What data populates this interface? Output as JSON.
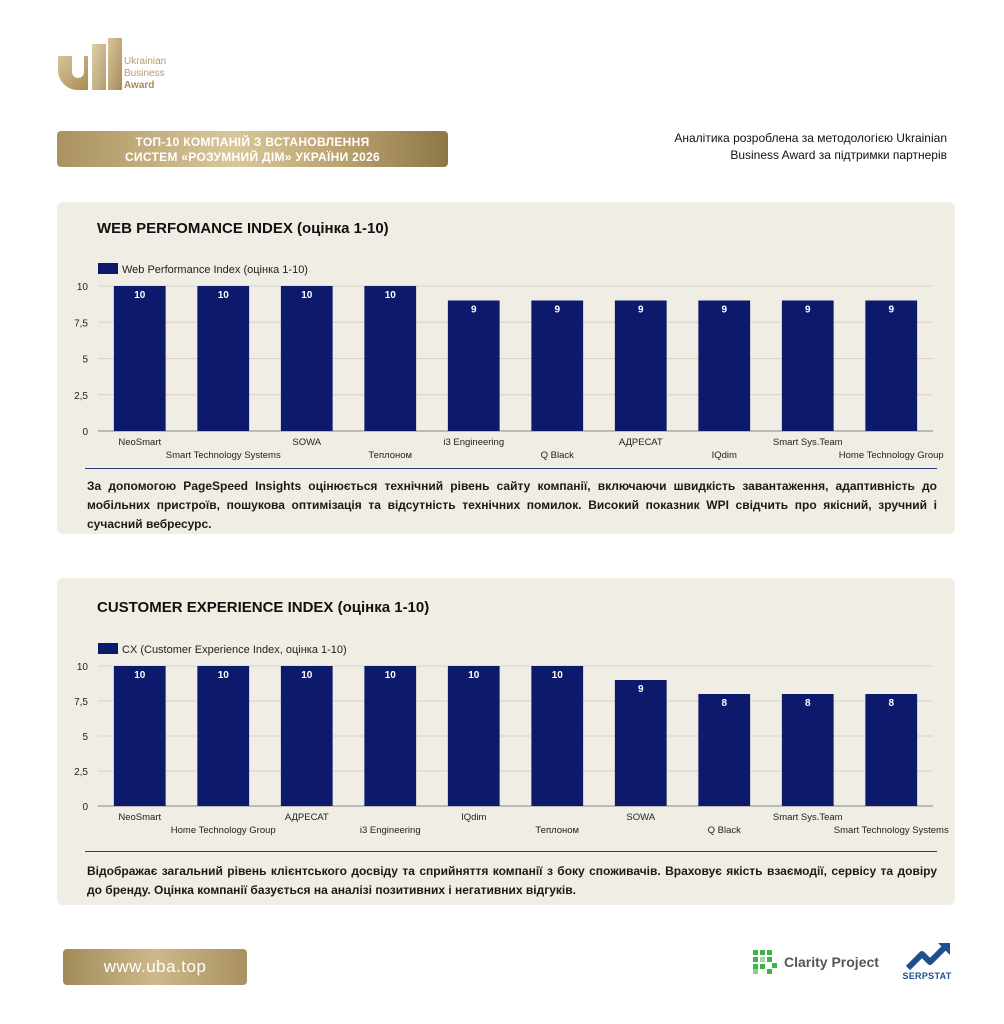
{
  "brand": {
    "logo_lines": [
      "Ukrainian",
      "Business",
      "Award"
    ],
    "banner_lines": [
      "ТОП-10 КОМПАНІЙ З ВСТАНОВЛЕННЯ",
      "СИСТЕМ «РОЗУМНИЙ ДІМ» УКРАЇНИ 2026"
    ],
    "note_lines": [
      "Аналітика розроблена за методологією Ukrainian",
      "Business Award за підтримки партнерів"
    ],
    "accent_color": "#b89a6a"
  },
  "chart_data": [
    {
      "type": "bar",
      "title": "WEB PERFOMANCE INDEX (оцінка 1-10)",
      "legend": "Web Performance Index (оцінка 1-10)",
      "categories": [
        "NeoSmart",
        "Smart Technology Systems",
        "SOWA",
        "Теплоном",
        "i3 Engineering",
        "Q Black",
        "АДРЕСАТ",
        "IQdim",
        "Smart Sys.Team",
        "Home Technology Group"
      ],
      "values": [
        10,
        10,
        10,
        10,
        9,
        9,
        9,
        9,
        9,
        9
      ],
      "yticks": [
        "0",
        "2,5",
        "5",
        "7,5",
        "10"
      ],
      "ylim": [
        0,
        10
      ],
      "grid": true,
      "bar_color": "#0d1a6b",
      "description": "За допомогою PageSpeed Insights оцінюється технічний рівень сайту компанії, включаючи швидкість завантаження, адаптивність до мобільних пристроїв, пошукова оптимізація та відсутність технічних помилок. Високий показник WPI свідчить про якісний, зручний і сучасний вебресурс."
    },
    {
      "type": "bar",
      "title": "CUSTOMER EXPERIENCE INDEX (оцінка 1-10)",
      "legend": "CX (Customer Experience Index, оцінка 1-10)",
      "categories": [
        "NeoSmart",
        "Home Technology Group",
        "АДРЕСАТ",
        "i3 Engineering",
        "IQdim",
        "Теплоном",
        "SOWA",
        "Q Black",
        "Smart Sys.Team",
        "Smart Technology Systems"
      ],
      "values": [
        10,
        10,
        10,
        10,
        10,
        10,
        9,
        8,
        8,
        8
      ],
      "yticks": [
        "0",
        "2,5",
        "5",
        "7,5",
        "10"
      ],
      "ylim": [
        0,
        10
      ],
      "grid": true,
      "bar_color": "#0d1a6b",
      "description": "Відображає загальний рівень клієнтського досвіду та сприйняття компанії з боку споживачів. Враховує якість взаємодії, сервісу та довіру до бренду. Оцінка компанії базується на аналізі позитивних і негативних відгуків."
    }
  ],
  "footer": {
    "url": "www.uba.top",
    "partner1": "Clarity Project",
    "partner2": "SERPSTAT",
    "partner2_icon": "serpstat-chart-icon",
    "partner1_icon": "clarity-grid-icon"
  }
}
